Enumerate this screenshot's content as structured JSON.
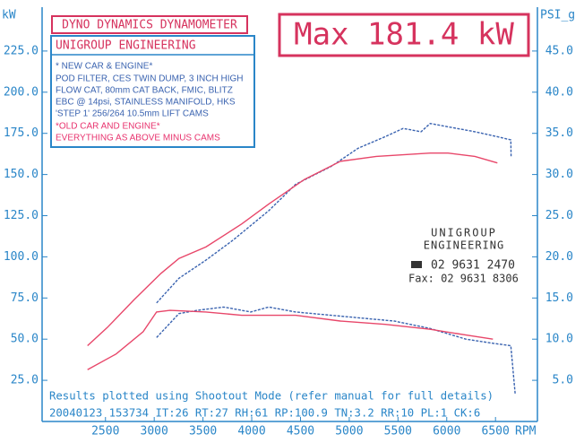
{
  "chart_data": {
    "type": "line",
    "header": "DYNO DYNAMICS DYNAMOMETER",
    "max_label": "Max 181.4 kW",
    "y_label": "kW",
    "y2_label": "PSI_g",
    "x_label": "RPM",
    "info_title": "UNIGROUP ENGINEERING",
    "new_details": [
      "POD FILTER, CES TWIN DUMP, 3 INCH HIGH",
      "FLOW CAT, 80mm CAT BACK, FMIC, BLITZ",
      "EBC @ 14psi, STAINLESS MANIFOLD, HKS",
      "'STEP 1' 256/264 10.5mm LIFT CAMS"
    ],
    "old_details": [
      "EVERYTHING AS ABOVE MINUS CAMS"
    ],
    "stamp": [
      "UNIGROUP",
      "ENGINEERING",
      "02 9631 2470",
      "Fax: 02 9631 8306"
    ],
    "footer": [
      "Results plotted using Shootout Mode (refer manual for full details)",
      "20040123 153734 IT:26 RT:27 RH:61 RP:100.9 TN:3.2 RR:10 PL:1 CK:6"
    ],
    "xlim": [
      1850,
      6930
    ],
    "xticks": [
      2500,
      3000,
      3500,
      4000,
      4500,
      5000,
      5500,
      6000,
      6500
    ],
    "ylim": [
      0,
      250
    ],
    "yticks": [
      {
        "value": 25,
        "label": "25.0"
      },
      {
        "value": 50,
        "label": "50.0"
      },
      {
        "value": 75,
        "label": "75.0"
      },
      {
        "value": 100,
        "label": "100.0"
      },
      {
        "value": 125,
        "label": "125.0"
      },
      {
        "value": 150,
        "label": "150.0"
      },
      {
        "value": 175,
        "label": "175.0"
      },
      {
        "value": 200,
        "label": "200.0"
      },
      {
        "value": 225,
        "label": "225.0"
      }
    ],
    "y2lim": [
      0,
      50
    ],
    "y2ticks": [
      {
        "value": 5,
        "label": "5.0"
      },
      {
        "value": 10,
        "label": "10.0"
      },
      {
        "value": 15,
        "label": "15.0"
      },
      {
        "value": 20,
        "label": "20.0"
      },
      {
        "value": 25,
        "label": "25.0"
      },
      {
        "value": 30,
        "label": "30.0"
      },
      {
        "value": 35,
        "label": "35.0"
      },
      {
        "value": 40,
        "label": "40.0"
      },
      {
        "value": 45,
        "label": "45.0"
      }
    ],
    "grid": false,
    "series": [
      {
        "name": "* NEW CAR & ENGINE*",
        "color": "#3a63b0",
        "x": [
          3024,
          3254,
          3530,
          3806,
          4174,
          4450,
          4817,
          5093,
          5369,
          5553,
          5737,
          5830,
          6013,
          6289,
          6519,
          6657,
          6660
        ],
        "values": [
          72,
          87,
          98,
          110,
          128,
          144,
          155,
          166,
          173,
          178,
          176,
          181,
          179,
          176,
          173,
          171,
          161
        ]
      },
      {
        "name": "*OLD CAR AND ENGINE*",
        "color": "#e8476a",
        "x": [
          2316,
          2518,
          2794,
          3070,
          3254,
          3530,
          3898,
          4174,
          4541,
          4909,
          5277,
          5830,
          6013,
          6289,
          6519
        ],
        "values": [
          46,
          57,
          74,
          90,
          99,
          106,
          120,
          132,
          147,
          158,
          161,
          163,
          163,
          161,
          157
        ]
      },
      {
        "color": "#3a63b0",
        "axis": "y2",
        "x": [
          3024,
          3254,
          3438,
          3714,
          3990,
          4174,
          4450,
          4817,
          5277,
          5461,
          5830,
          6197,
          6473,
          6657,
          6702
        ],
        "values": [
          10.2,
          13.1,
          13.5,
          13.9,
          13.3,
          13.9,
          13.3,
          12.9,
          12.4,
          12.2,
          11.3,
          10.0,
          9.5,
          9.2,
          3.3
        ]
      },
      {
        "color": "#e8476a",
        "axis": "y2",
        "x": [
          2316,
          2610,
          2886,
          3024,
          3162,
          3530,
          3898,
          4450,
          4909,
          5369,
          5830,
          6197,
          6473
        ],
        "values": [
          6.3,
          8.2,
          10.9,
          13.3,
          13.5,
          13.3,
          12.9,
          12.9,
          12.2,
          11.8,
          11.2,
          10.5,
          10.0
        ]
      }
    ]
  }
}
